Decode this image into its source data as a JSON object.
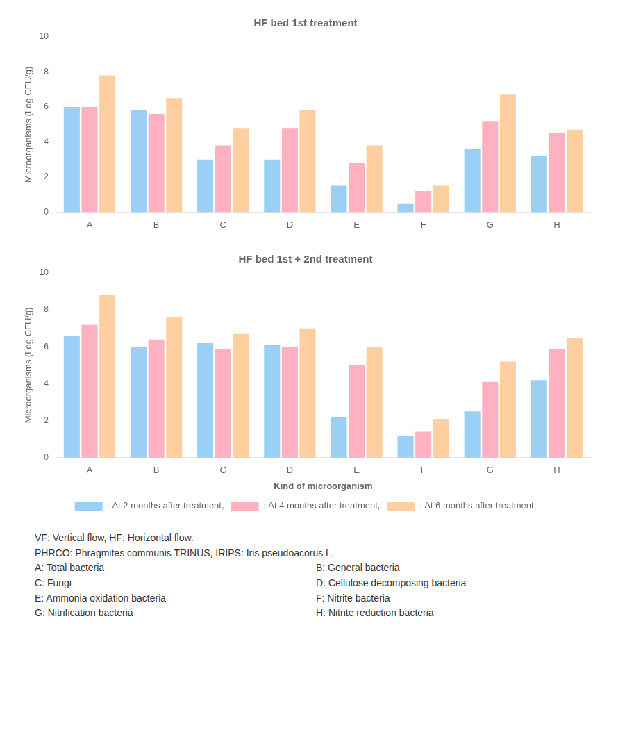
{
  "chart_data": [
    {
      "type": "bar",
      "title": "HF bed 1st treatment",
      "categories": [
        "A",
        "B",
        "C",
        "D",
        "E",
        "F",
        "G",
        "H"
      ],
      "series": [
        {
          "name": ": At 2 months after treatment,",
          "values": [
            6.0,
            5.8,
            3.0,
            3.0,
            1.5,
            0.5,
            3.6,
            3.2
          ]
        },
        {
          "name": ": At 4 months after treatment,",
          "values": [
            6.0,
            5.6,
            3.8,
            4.8,
            2.8,
            1.2,
            5.2,
            4.5
          ]
        },
        {
          "name": ": At 6 months after treatment,",
          "values": [
            7.8,
            6.5,
            4.8,
            5.8,
            3.8,
            1.5,
            6.7,
            4.7
          ]
        }
      ],
      "ylabel": "Microorganisms (Log CFU/g)",
      "ylim": [
        0,
        10
      ],
      "yticks": [
        0,
        2,
        4,
        6,
        8,
        10
      ],
      "grid": false
    },
    {
      "type": "bar",
      "title": "HF bed 1st + 2nd treatment",
      "categories": [
        "A",
        "B",
        "C",
        "D",
        "E",
        "F",
        "G",
        "H"
      ],
      "series": [
        {
          "name": ": At 2 months after treatment,",
          "values": [
            6.6,
            6.0,
            6.2,
            6.1,
            2.2,
            1.2,
            2.5,
            4.2
          ]
        },
        {
          "name": ": At 4 months after treatment,",
          "values": [
            7.2,
            6.4,
            5.9,
            6.0,
            5.0,
            1.4,
            4.1,
            5.9
          ]
        },
        {
          "name": ": At 6 months after treatment,",
          "values": [
            8.8,
            7.6,
            6.7,
            7.0,
            6.0,
            2.1,
            5.2,
            6.5
          ]
        }
      ],
      "xlabel": "Kind of microorganism",
      "ylabel": "Microorganisms (Log CFU/g)",
      "ylim": [
        0,
        10
      ],
      "yticks": [
        0,
        2,
        4,
        6,
        8,
        10
      ],
      "grid": false,
      "legend": "bottom",
      "annotations": [
        "VF: Vertical flow, HF: Horizontal flow.",
        "PHRCO: Phragmites communis TRINUS, IRIPS: Iris pseudoacorus L.",
        "A: Total bacteria",
        "B: General bacteria",
        "C: Fungi",
        "D: Cellulose decomposing bacteria",
        "E: Ammonia oxidation bacteria",
        "F: Nitrite bacteria",
        "G: Nitrification bacteria",
        "H: Nitrite reduction bacteria"
      ]
    }
  ]
}
